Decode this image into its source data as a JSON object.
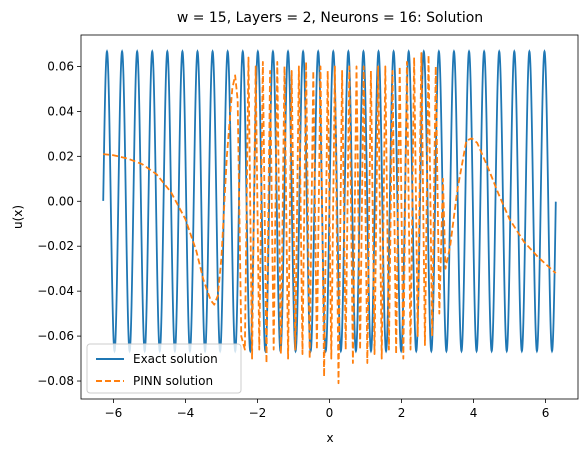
{
  "chart_data": {
    "type": "line",
    "title": "w = 15, Layers = 2, Neurons = 16: Solution",
    "xlabel": "x",
    "ylabel": "u(x)",
    "xlim": [
      -6.9,
      6.9
    ],
    "ylim": [
      -0.088,
      0.074
    ],
    "xticks": [
      -6,
      -4,
      -2,
      0,
      2,
      4,
      6
    ],
    "xtick_labels": [
      "−6",
      "−4",
      "−2",
      "0",
      "2",
      "4",
      "6"
    ],
    "yticks": [
      -0.08,
      -0.06,
      -0.04,
      -0.02,
      0.0,
      0.02,
      0.04,
      0.06
    ],
    "ytick_labels": [
      "−0.08",
      "−0.06",
      "−0.04",
      "−0.02",
      "0.00",
      "0.02",
      "0.04",
      "0.06"
    ],
    "grid": false,
    "legend_position": "lower-left",
    "series": [
      {
        "name": "Exact solution",
        "color": "#1f77b4",
        "style": "solid",
        "function": "sin(15x)/15",
        "x_range": [
          -6.283,
          6.283
        ]
      },
      {
        "name": "PINN solution",
        "color": "#ff7f0e",
        "style": "dashed",
        "x": [
          -6.2832,
          -6.0,
          -5.6,
          -5.2,
          -4.8,
          -4.4,
          -4.0,
          -3.7,
          -3.5,
          -3.3,
          -3.2,
          -3.1,
          -3.0,
          -2.95,
          -2.85,
          -2.7,
          -2.62,
          -2.55,
          -2.45,
          -2.35,
          -2.25,
          -2.15,
          -2.05,
          -1.95,
          -1.85,
          -1.75,
          -1.65,
          -1.55,
          -1.45,
          -1.35,
          -1.25,
          -1.15,
          -1.05,
          -0.95,
          -0.85,
          -0.75,
          -0.65,
          -0.55,
          -0.45,
          -0.35,
          -0.25,
          -0.15,
          -0.05,
          0.05,
          0.15,
          0.25,
          0.35,
          0.45,
          0.55,
          0.65,
          0.75,
          0.85,
          0.95,
          1.05,
          1.15,
          1.25,
          1.35,
          1.45,
          1.55,
          1.65,
          1.75,
          1.85,
          1.95,
          2.05,
          2.15,
          2.25,
          2.35,
          2.45,
          2.55,
          2.65,
          2.75,
          2.85,
          2.95,
          3.05,
          3.15,
          3.22,
          3.35,
          3.55,
          3.8,
          3.95,
          4.1,
          4.4,
          4.7,
          5.0,
          5.4,
          5.8,
          6.2832
        ],
        "y": [
          0.021,
          0.0205,
          0.019,
          0.0165,
          0.012,
          0.004,
          -0.008,
          -0.022,
          -0.035,
          -0.044,
          -0.046,
          -0.042,
          -0.025,
          -0.01,
          0.02,
          0.05,
          0.056,
          0.045,
          -0.06,
          -0.066,
          0.064,
          -0.07,
          0.06,
          -0.066,
          0.062,
          -0.072,
          0.058,
          -0.066,
          0.062,
          -0.068,
          0.06,
          -0.07,
          0.058,
          -0.066,
          0.06,
          -0.068,
          0.062,
          -0.07,
          0.058,
          -0.066,
          0.06,
          -0.078,
          0.058,
          -0.07,
          0.06,
          -0.081,
          0.058,
          -0.066,
          0.06,
          -0.072,
          0.06,
          -0.066,
          0.06,
          -0.072,
          0.058,
          -0.068,
          0.06,
          -0.07,
          0.06,
          -0.066,
          0.058,
          -0.068,
          0.06,
          -0.07,
          0.062,
          -0.066,
          0.064,
          -0.06,
          0.066,
          -0.064,
          0.065,
          -0.06,
          0.06,
          -0.05,
          0.01,
          -0.03,
          -0.02,
          0.005,
          0.027,
          0.028,
          0.026,
          0.015,
          0.003,
          -0.008,
          -0.018,
          -0.025,
          -0.032
        ]
      }
    ]
  }
}
